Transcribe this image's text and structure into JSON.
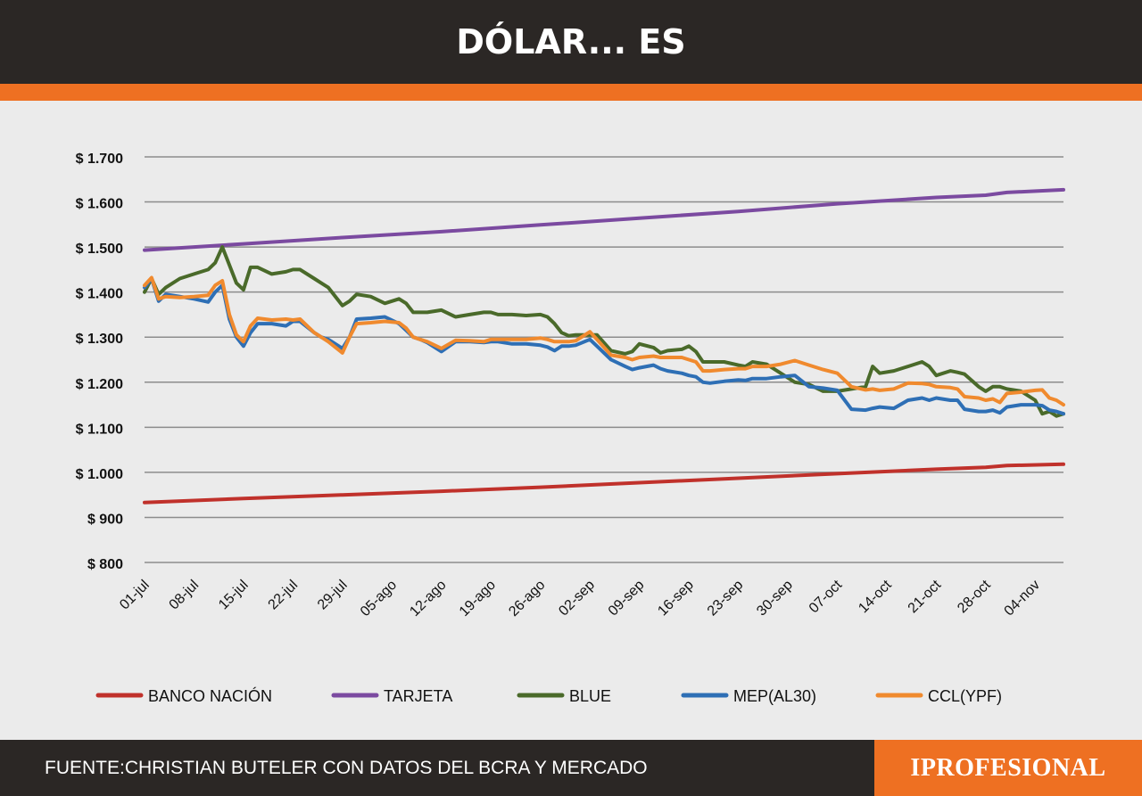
{
  "header": {
    "title": "DÓLAR... ES"
  },
  "footer": {
    "source": "FUENTE:CHRISTIAN BUTELER CON DATOS DEL BCRA Y MERCADO",
    "logo": "IPROFESIONAL"
  },
  "colors": {
    "header_bg": "#2b2725",
    "accent": "#ee7022",
    "plot_bg": "#ebebeb",
    "grid": "#8c8c8c"
  },
  "chart_data": {
    "type": "line",
    "title": "DÓLAR... ES",
    "xlabel": "",
    "ylabel": "",
    "grid": true,
    "legend_position": "bottom",
    "ylim": [
      800,
      1700
    ],
    "yticks": [
      800,
      900,
      1000,
      1100,
      1200,
      1300,
      1400,
      1500,
      1600,
      1700
    ],
    "ytick_labels": [
      "$ 800",
      "$ 900",
      "$ 1.000",
      "$ 1.100",
      "$ 1.200",
      "$ 1.300",
      "$ 1.400",
      "$ 1.500",
      "$ 1.600",
      "$ 1.700"
    ],
    "x_tick_labels": [
      "01-jul",
      "08-jul",
      "15-jul",
      "22-jul",
      "29-jul",
      "05-ago",
      "12-ago",
      "19-ago",
      "26-ago",
      "02-sep",
      "09-sep",
      "16-sep",
      "23-sep",
      "30-sep",
      "07-oct",
      "14-oct",
      "21-oct",
      "28-oct",
      "04-nov"
    ],
    "x_tick_days": [
      0,
      7,
      14,
      21,
      28,
      35,
      42,
      49,
      56,
      63,
      70,
      77,
      84,
      91,
      98,
      105,
      112,
      119,
      126
    ],
    "x_range_days": [
      0,
      130
    ],
    "series": [
      {
        "name": "BANCO NACIÓN",
        "color": "#c0312b",
        "x": [
          0,
          14,
          28,
          42,
          56,
          70,
          84,
          98,
          112,
          119,
          122,
          130
        ],
        "y": [
          933,
          942,
          950,
          958,
          967,
          977,
          987,
          997,
          1007,
          1011,
          1015,
          1018
        ]
      },
      {
        "name": "TARJETA",
        "color": "#7b4aa0",
        "x": [
          0,
          14,
          28,
          42,
          56,
          70,
          84,
          98,
          112,
          119,
          122,
          130
        ],
        "y": [
          1493,
          1507,
          1521,
          1534,
          1549,
          1564,
          1579,
          1596,
          1610,
          1615,
          1621,
          1627
        ]
      },
      {
        "name": "BLUE",
        "color": "#4a6a2a",
        "x": [
          0,
          1,
          2,
          3,
          5,
          7,
          9,
          10,
          11,
          12,
          13,
          14,
          15,
          16,
          18,
          20,
          21,
          22,
          24,
          25,
          26,
          28,
          29,
          30,
          32,
          34,
          36,
          37,
          38,
          39,
          40,
          42,
          44,
          46,
          48,
          49,
          50,
          52,
          54,
          56,
          57,
          58,
          59,
          60,
          61,
          63,
          64,
          66,
          68,
          69,
          70,
          72,
          73,
          74,
          76,
          77,
          78,
          79,
          80,
          82,
          84,
          85,
          86,
          88,
          90,
          92,
          94,
          96,
          98,
          100,
          102,
          103,
          104,
          106,
          108,
          110,
          111,
          112,
          114,
          115,
          116,
          118,
          119,
          120,
          121,
          122,
          124,
          126,
          127,
          128,
          129,
          130
        ],
        "y": [
          1400,
          1430,
          1395,
          1410,
          1430,
          1440,
          1450,
          1465,
          1500,
          1460,
          1420,
          1405,
          1455,
          1455,
          1440,
          1445,
          1450,
          1450,
          1430,
          1420,
          1410,
          1370,
          1380,
          1395,
          1390,
          1375,
          1385,
          1375,
          1355,
          1355,
          1355,
          1360,
          1345,
          1350,
          1355,
          1355,
          1350,
          1350,
          1348,
          1350,
          1345,
          1330,
          1310,
          1303,
          1305,
          1305,
          1305,
          1270,
          1263,
          1268,
          1285,
          1277,
          1265,
          1270,
          1273,
          1280,
          1268,
          1245,
          1245,
          1245,
          1238,
          1235,
          1245,
          1240,
          1220,
          1200,
          1195,
          1180,
          1180,
          1185,
          1190,
          1235,
          1220,
          1225,
          1235,
          1245,
          1235,
          1215,
          1225,
          1222,
          1218,
          1190,
          1180,
          1190,
          1190,
          1185,
          1180,
          1160,
          1130,
          1135,
          1125,
          1130
        ]
      },
      {
        "name": "MEP(AL30)",
        "color": "#2e6fb5",
        "x": [
          0,
          1,
          2,
          3,
          5,
          7,
          9,
          10,
          11,
          12,
          13,
          14,
          15,
          16,
          18,
          20,
          21,
          22,
          24,
          25,
          26,
          28,
          29,
          30,
          32,
          34,
          36,
          37,
          38,
          39,
          40,
          42,
          44,
          46,
          48,
          49,
          50,
          52,
          54,
          56,
          57,
          58,
          59,
          60,
          61,
          63,
          64,
          66,
          68,
          69,
          70,
          72,
          73,
          74,
          76,
          77,
          78,
          79,
          80,
          82,
          84,
          85,
          86,
          88,
          90,
          92,
          94,
          96,
          98,
          100,
          102,
          103,
          104,
          106,
          108,
          110,
          111,
          112,
          114,
          115,
          116,
          118,
          119,
          120,
          121,
          122,
          124,
          126,
          127,
          128,
          129,
          130
        ],
        "y": [
          1410,
          1430,
          1380,
          1395,
          1390,
          1385,
          1378,
          1400,
          1415,
          1340,
          1300,
          1280,
          1310,
          1330,
          1330,
          1325,
          1335,
          1335,
          1310,
          1300,
          1295,
          1275,
          1300,
          1340,
          1342,
          1345,
          1330,
          1315,
          1300,
          1295,
          1288,
          1268,
          1290,
          1290,
          1288,
          1290,
          1290,
          1285,
          1285,
          1282,
          1278,
          1270,
          1280,
          1280,
          1282,
          1295,
          1280,
          1250,
          1235,
          1228,
          1232,
          1238,
          1230,
          1225,
          1220,
          1215,
          1212,
          1200,
          1198,
          1202,
          1205,
          1204,
          1208,
          1208,
          1212,
          1215,
          1190,
          1187,
          1182,
          1140,
          1138,
          1142,
          1145,
          1142,
          1160,
          1165,
          1160,
          1165,
          1160,
          1160,
          1140,
          1135,
          1135,
          1138,
          1132,
          1145,
          1150,
          1150,
          1148,
          1138,
          1135,
          1130
        ]
      },
      {
        "name": "CCL(YPF)",
        "color": "#f08a2e",
        "x": [
          0,
          1,
          2,
          3,
          5,
          7,
          9,
          10,
          11,
          12,
          13,
          14,
          15,
          16,
          18,
          20,
          21,
          22,
          24,
          25,
          26,
          28,
          29,
          30,
          32,
          34,
          36,
          37,
          38,
          39,
          40,
          42,
          44,
          46,
          48,
          49,
          50,
          52,
          54,
          56,
          57,
          58,
          59,
          60,
          61,
          63,
          64,
          66,
          68,
          69,
          70,
          72,
          73,
          74,
          76,
          77,
          78,
          79,
          80,
          82,
          84,
          85,
          86,
          88,
          90,
          92,
          94,
          96,
          98,
          100,
          102,
          103,
          104,
          106,
          108,
          110,
          111,
          112,
          114,
          115,
          116,
          118,
          119,
          120,
          121,
          122,
          124,
          126,
          127,
          128,
          129,
          130
        ],
        "y": [
          1415,
          1432,
          1385,
          1390,
          1388,
          1390,
          1393,
          1415,
          1425,
          1350,
          1305,
          1290,
          1325,
          1342,
          1338,
          1340,
          1338,
          1340,
          1310,
          1300,
          1290,
          1265,
          1300,
          1330,
          1332,
          1335,
          1332,
          1320,
          1300,
          1295,
          1290,
          1275,
          1293,
          1292,
          1290,
          1295,
          1295,
          1295,
          1295,
          1298,
          1295,
          1290,
          1290,
          1290,
          1292,
          1312,
          1295,
          1260,
          1255,
          1250,
          1255,
          1258,
          1255,
          1255,
          1255,
          1250,
          1245,
          1225,
          1225,
          1228,
          1230,
          1230,
          1235,
          1235,
          1240,
          1248,
          1238,
          1228,
          1220,
          1190,
          1183,
          1185,
          1182,
          1185,
          1198,
          1197,
          1195,
          1190,
          1188,
          1185,
          1168,
          1165,
          1160,
          1163,
          1155,
          1175,
          1178,
          1182,
          1183,
          1165,
          1160,
          1150
        ]
      }
    ]
  }
}
